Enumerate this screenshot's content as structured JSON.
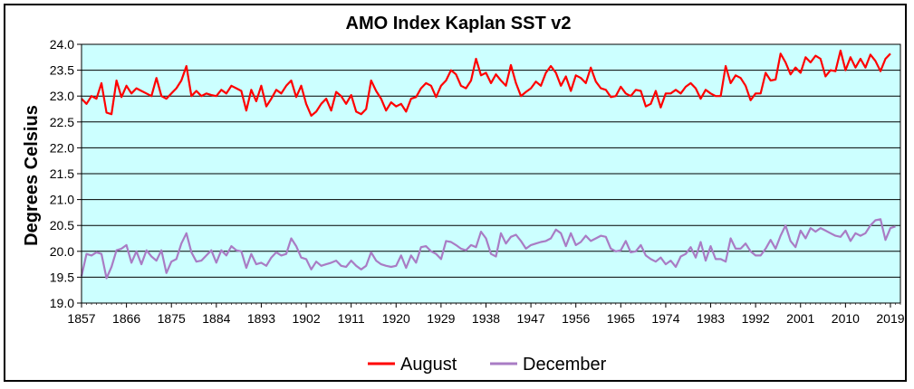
{
  "chart_data": {
    "type": "line",
    "title": "AMO Index Kaplan SST v2",
    "ylabel": "Degrees Celsius",
    "xlabel": "",
    "ylim": [
      19.0,
      24.0
    ],
    "xlim": [
      1857,
      2021
    ],
    "yticks": [
      19.0,
      19.5,
      20.0,
      20.5,
      21.0,
      21.5,
      22.0,
      22.5,
      23.0,
      23.5,
      24.0
    ],
    "ytick_labels": [
      "19.0",
      "19.5",
      "20.0",
      "20.5",
      "21.0",
      "21.5",
      "22.0",
      "22.5",
      "23.0",
      "23.5",
      "24.0"
    ],
    "xticks": [
      1857,
      1866,
      1875,
      1884,
      1893,
      1902,
      1911,
      1920,
      1929,
      1938,
      1947,
      1956,
      1965,
      1974,
      1983,
      1992,
      2001,
      2010,
      2019
    ],
    "xtick_labels": [
      "1857",
      "1866",
      "1875",
      "1884",
      "1893",
      "1902",
      "1911",
      "1920",
      "1929",
      "1938",
      "1947",
      "1956",
      "1965",
      "1974",
      "1983",
      "1992",
      "2001",
      "2010",
      "2019"
    ],
    "grid": true,
    "background_color": "#ccffff",
    "legend_position": "bottom",
    "x_start": 1857,
    "series": [
      {
        "name": "August",
        "color": "#ff0000",
        "values": [
          22.95,
          22.85,
          23.0,
          22.95,
          23.25,
          22.68,
          22.65,
          23.3,
          22.98,
          23.2,
          23.05,
          23.15,
          23.1,
          23.05,
          23.0,
          23.35,
          23.0,
          22.95,
          23.05,
          23.15,
          23.3,
          23.58,
          23.0,
          23.1,
          23.0,
          23.05,
          23.02,
          23.0,
          23.12,
          23.05,
          23.2,
          23.15,
          23.1,
          22.72,
          23.12,
          22.9,
          23.2,
          22.8,
          22.95,
          23.12,
          23.05,
          23.2,
          23.3,
          22.98,
          23.2,
          22.85,
          22.62,
          22.7,
          22.85,
          22.95,
          22.72,
          23.08,
          23.0,
          22.85,
          23.02,
          22.7,
          22.65,
          22.75,
          23.3,
          23.1,
          22.95,
          22.72,
          22.88,
          22.8,
          22.85,
          22.7,
          22.95,
          22.98,
          23.15,
          23.25,
          23.2,
          22.98,
          23.2,
          23.3,
          23.5,
          23.42,
          23.2,
          23.15,
          23.3,
          23.72,
          23.4,
          23.45,
          23.25,
          23.42,
          23.3,
          23.2,
          23.6,
          23.25,
          23.0,
          23.08,
          23.15,
          23.28,
          23.2,
          23.45,
          23.58,
          23.45,
          23.2,
          23.38,
          23.1,
          23.4,
          23.35,
          23.25,
          23.55,
          23.28,
          23.15,
          23.12,
          22.98,
          23.0,
          23.18,
          23.05,
          23.0,
          23.12,
          23.1,
          22.8,
          22.85,
          23.1,
          22.78,
          23.05,
          23.05,
          23.12,
          23.05,
          23.18,
          23.25,
          23.15,
          22.95,
          23.12,
          23.05,
          23.0,
          23.0,
          23.58,
          23.25,
          23.4,
          23.35,
          23.2,
          22.92,
          23.05,
          23.05,
          23.45,
          23.3,
          23.32,
          23.82,
          23.65,
          23.42,
          23.55,
          23.45,
          23.75,
          23.65,
          23.78,
          23.72,
          23.38,
          23.5,
          23.48,
          23.88,
          23.5,
          23.75,
          23.55,
          23.72,
          23.55,
          23.8,
          23.68,
          23.48,
          23.72,
          23.82
        ]
      },
      {
        "name": "December",
        "color": "#a97cc4",
        "values": [
          19.52,
          19.95,
          19.92,
          19.98,
          19.95,
          19.48,
          19.7,
          20.02,
          20.05,
          20.12,
          19.78,
          20.0,
          19.75,
          20.02,
          19.9,
          19.82,
          20.02,
          19.58,
          19.8,
          19.85,
          20.15,
          20.35,
          19.98,
          19.8,
          19.82,
          19.92,
          20.02,
          19.78,
          20.02,
          19.92,
          20.1,
          20.02,
          20.0,
          19.68,
          19.95,
          19.75,
          19.78,
          19.72,
          19.88,
          19.98,
          19.92,
          19.95,
          20.25,
          20.1,
          19.88,
          19.85,
          19.65,
          19.8,
          19.72,
          19.75,
          19.78,
          19.82,
          19.72,
          19.7,
          19.82,
          19.72,
          19.65,
          19.72,
          19.98,
          19.82,
          19.75,
          19.72,
          19.7,
          19.72,
          19.92,
          19.68,
          19.92,
          19.78,
          20.08,
          20.1,
          20.0,
          19.95,
          19.85,
          20.2,
          20.18,
          20.12,
          20.05,
          20.02,
          20.12,
          20.08,
          20.38,
          20.25,
          19.95,
          19.9,
          20.35,
          20.15,
          20.28,
          20.32,
          20.2,
          20.05,
          20.12,
          20.15,
          20.18,
          20.2,
          20.25,
          20.42,
          20.35,
          20.1,
          20.35,
          20.12,
          20.18,
          20.3,
          20.2,
          20.25,
          20.3,
          20.28,
          20.05,
          20.0,
          20.02,
          20.2,
          19.98,
          20.0,
          20.12,
          19.92,
          19.85,
          19.8,
          19.88,
          19.75,
          19.82,
          19.7,
          19.9,
          19.95,
          20.08,
          19.88,
          20.18,
          19.82,
          20.1,
          19.85,
          19.85,
          19.8,
          20.25,
          20.05,
          20.05,
          20.15,
          20.0,
          19.92,
          19.92,
          20.05,
          20.22,
          20.05,
          20.3,
          20.5,
          20.2,
          20.08,
          20.4,
          20.25,
          20.45,
          20.38,
          20.45,
          20.4,
          20.35,
          20.3,
          20.28,
          20.4,
          20.2,
          20.35,
          20.3,
          20.35,
          20.5,
          20.6,
          20.62,
          20.22,
          20.45,
          20.48
        ]
      }
    ]
  }
}
